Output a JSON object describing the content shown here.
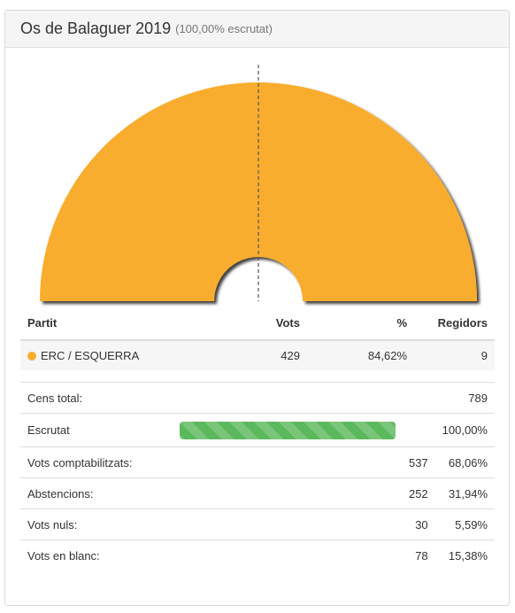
{
  "header": {
    "title": "Os de Balaguer 2019",
    "subtitle": "(100,00% escrutat)"
  },
  "party_table": {
    "headers": {
      "partit": "Partit",
      "vots": "Vots",
      "percent": "%",
      "regidors": "Regidors"
    },
    "rows": [
      {
        "partit": "ERC / ESQUERRA",
        "vots": "429",
        "percent": "84,62%",
        "regidors": "9",
        "color": "#f9ad2d"
      }
    ]
  },
  "stats": {
    "cens": {
      "label": "Cens total:",
      "value": "789"
    },
    "escrutat": {
      "label": "Escrutat",
      "progress": 1.0,
      "percent": "100,00%"
    },
    "comptabilitzats": {
      "label": "Vots comptabilitzats:",
      "value": "537",
      "percent": "68,06%"
    },
    "abstencions": {
      "label": "Abstencions:",
      "value": "252",
      "percent": "31,94%"
    },
    "nuls": {
      "label": "Vots nuls:",
      "value": "30",
      "percent": "5,59%"
    },
    "blanc": {
      "label": "Vots en blanc:",
      "value": "78",
      "percent": "15,38%"
    }
  },
  "chart_data": {
    "type": "pie",
    "shape": "semicircle-parliament",
    "categories": [
      "ERC / ESQUERRA"
    ],
    "values": [
      9
    ],
    "colors": [
      "#f9ad2d"
    ],
    "majority_line": true
  }
}
